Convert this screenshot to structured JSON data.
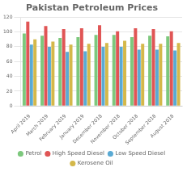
{
  "chart_data": {
    "type": "bar",
    "title": "Pakistan Petroleum Prices",
    "categories": [
      "April 2019",
      "March 2019",
      "February 2019",
      "January 2019",
      "December 2018",
      "November 2018",
      "October 2018",
      "September 2018",
      "August 2018"
    ],
    "series": [
      {
        "name": "Petrol",
        "color": "#7dc87d",
        "values": [
          98,
          95,
          92,
          93,
          96,
          96,
          93,
          95,
          94
        ]
      },
      {
        "name": "High Speed Diesel",
        "color": "#e05555",
        "values": [
          114,
          108,
          104,
          105,
          109,
          101,
          105,
          104,
          101
        ]
      },
      {
        "name": "Low Speed Diesel",
        "color": "#5aaad4",
        "values": [
          83,
          80,
          73,
          74,
          80,
          80,
          76,
          76,
          75
        ]
      },
      {
        "name": "Kerosene Oil",
        "color": "#d4b84a",
        "values": [
          90,
          87,
          83,
          84,
          85,
          88,
          84,
          84,
          85
        ]
      }
    ],
    "ylim": [
      0,
      120
    ],
    "yticks": [
      0,
      20,
      40,
      60,
      80,
      100,
      120
    ],
    "grid": true,
    "legend": "bottom"
  }
}
